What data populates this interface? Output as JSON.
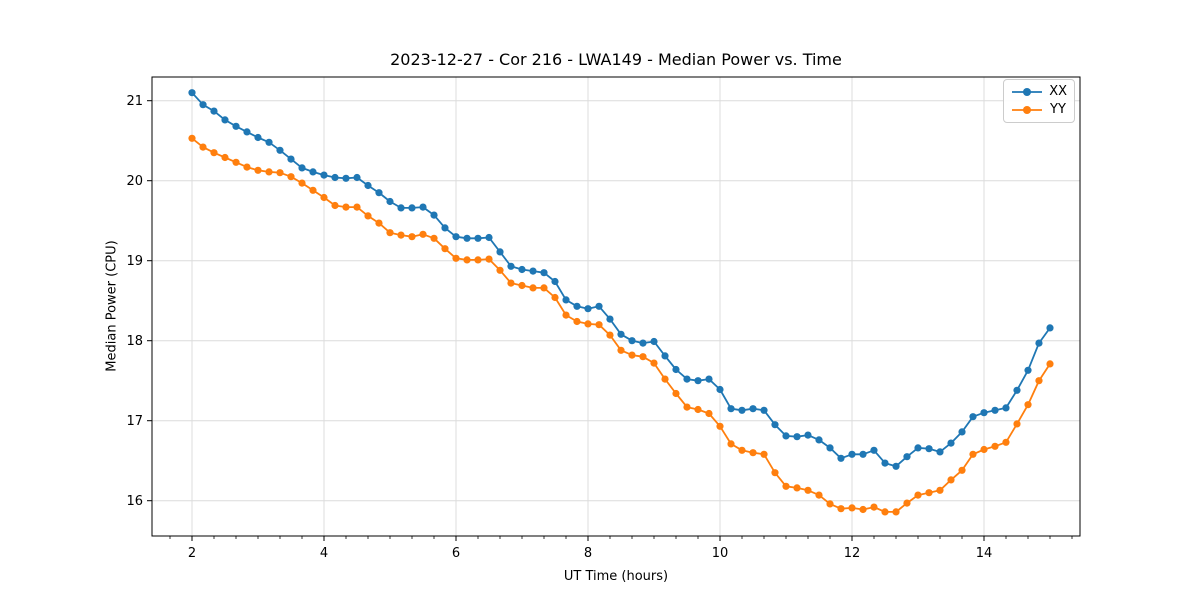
{
  "chart_data": {
    "type": "line",
    "title": "2023-12-27 - Cor 216 - LWA149 - Median Power vs. Time",
    "xlabel": "UT Time (hours)",
    "ylabel": "Median Power (CPU)",
    "x_ticks": [
      2,
      4,
      6,
      8,
      10,
      12,
      14
    ],
    "y_ticks": [
      16,
      17,
      18,
      19,
      20,
      21
    ],
    "xlim": [
      1.39,
      15.45
    ],
    "ylim": [
      15.56,
      21.3
    ],
    "grid": true,
    "grid_color": "#dcdcdc",
    "legend_position": "upper right",
    "marker": "o",
    "x_step_hours": 0.1667,
    "x": [
      2.0,
      2.167,
      2.333,
      2.5,
      2.667,
      2.833,
      3.0,
      3.167,
      3.333,
      3.5,
      3.667,
      3.833,
      4.0,
      4.167,
      4.333,
      4.5,
      4.667,
      4.833,
      5.0,
      5.167,
      5.333,
      5.5,
      5.667,
      5.833,
      6.0,
      6.167,
      6.333,
      6.5,
      6.667,
      6.833,
      7.0,
      7.167,
      7.333,
      7.5,
      7.667,
      7.833,
      8.0,
      8.167,
      8.333,
      8.5,
      8.667,
      8.833,
      9.0,
      9.167,
      9.333,
      9.5,
      9.667,
      9.833,
      10.0,
      10.167,
      10.333,
      10.5,
      10.667,
      10.833,
      11.0,
      11.167,
      11.333,
      11.5,
      11.667,
      11.833,
      12.0,
      12.167,
      12.333,
      12.5,
      12.667,
      12.833,
      13.0,
      13.167,
      13.333,
      13.5,
      13.667,
      13.833,
      14.0,
      14.167,
      14.333,
      14.5,
      14.667,
      14.833,
      15.0
    ],
    "series": [
      {
        "name": "XX",
        "color": "#1f77b4",
        "values": [
          21.1,
          20.95,
          20.87,
          20.76,
          20.68,
          20.61,
          20.54,
          20.48,
          20.38,
          20.27,
          20.16,
          20.11,
          20.07,
          20.04,
          20.03,
          20.04,
          19.94,
          19.85,
          19.74,
          19.66,
          19.66,
          19.67,
          19.57,
          19.41,
          19.3,
          19.28,
          19.28,
          19.29,
          19.11,
          18.93,
          18.89,
          18.87,
          18.85,
          18.74,
          18.51,
          18.43,
          18.4,
          18.43,
          18.27,
          18.08,
          18.0,
          17.97,
          17.99,
          17.81,
          17.64,
          17.52,
          17.5,
          17.52,
          17.39,
          17.15,
          17.13,
          17.15,
          17.13,
          16.95,
          16.81,
          16.8,
          16.82,
          16.76,
          16.66,
          16.53,
          16.58,
          16.58,
          16.63,
          16.47,
          16.43,
          16.55,
          16.66,
          16.65,
          16.61,
          16.72,
          16.86,
          17.05,
          17.1,
          17.13,
          17.16,
          17.38,
          17.63,
          17.97,
          18.16
        ]
      },
      {
        "name": "YY",
        "color": "#ff7f0e",
        "values": [
          20.53,
          20.42,
          20.35,
          20.29,
          20.23,
          20.17,
          20.13,
          20.11,
          20.1,
          20.05,
          19.97,
          19.88,
          19.79,
          19.69,
          19.67,
          19.67,
          19.56,
          19.47,
          19.35,
          19.32,
          19.3,
          19.33,
          19.28,
          19.15,
          19.03,
          19.01,
          19.01,
          19.02,
          18.88,
          18.72,
          18.69,
          18.66,
          18.66,
          18.54,
          18.32,
          18.24,
          18.21,
          18.2,
          18.07,
          17.88,
          17.82,
          17.8,
          17.72,
          17.52,
          17.34,
          17.17,
          17.14,
          17.09,
          16.93,
          16.71,
          16.63,
          16.6,
          16.58,
          16.35,
          16.18,
          16.16,
          16.13,
          16.07,
          15.96,
          15.9,
          15.91,
          15.89,
          15.92,
          15.86,
          15.86,
          15.97,
          16.07,
          16.1,
          16.13,
          16.26,
          16.38,
          16.58,
          16.64,
          16.68,
          16.73,
          16.96,
          17.2,
          17.5,
          17.71
        ]
      }
    ]
  }
}
